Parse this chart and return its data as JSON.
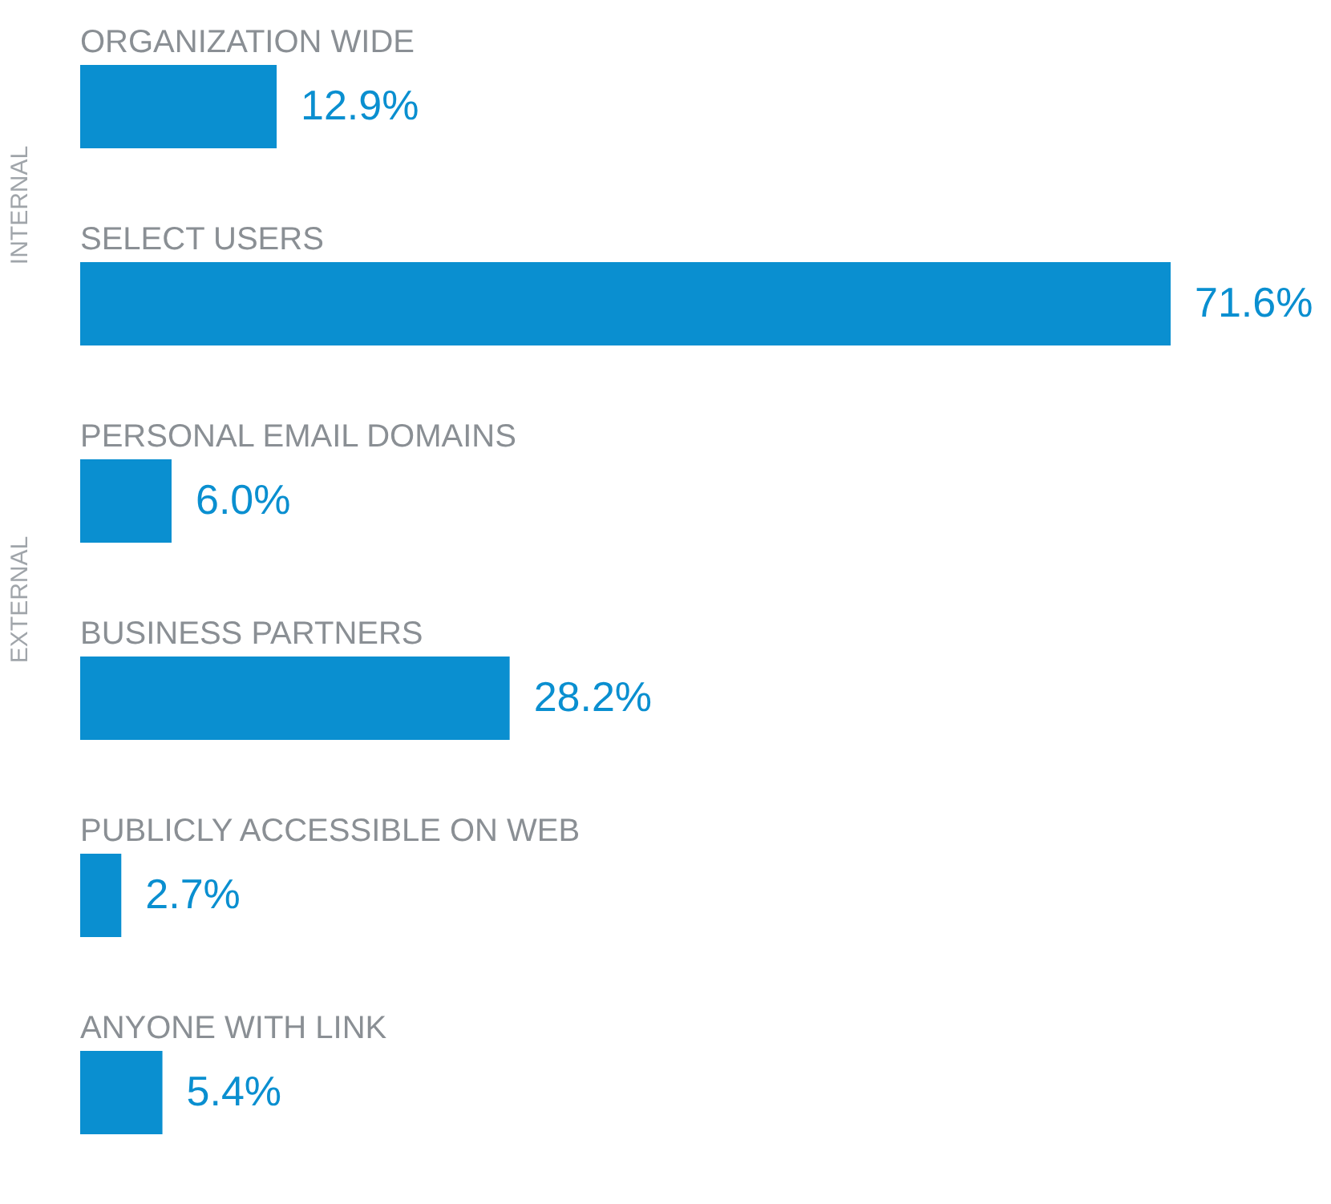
{
  "chart_data": {
    "type": "bar",
    "orientation": "horizontal",
    "categories": [
      "ORGANIZATION WIDE",
      "SELECT USERS",
      "PERSONAL EMAIL DOMAINS",
      "BUSINESS PARTNERS",
      "PUBLICLY ACCESSIBLE ON WEB",
      "ANYONE WITH LINK"
    ],
    "values": [
      12.9,
      71.6,
      6.0,
      28.2,
      2.7,
      5.4
    ],
    "value_labels": [
      "12.9%",
      "71.6%",
      "6.0%",
      "28.2%",
      "2.7%",
      "5.4%"
    ],
    "color": "#0a8fd0",
    "annotations": [
      "INTERNAL",
      "EXTERNAL"
    ]
  }
}
